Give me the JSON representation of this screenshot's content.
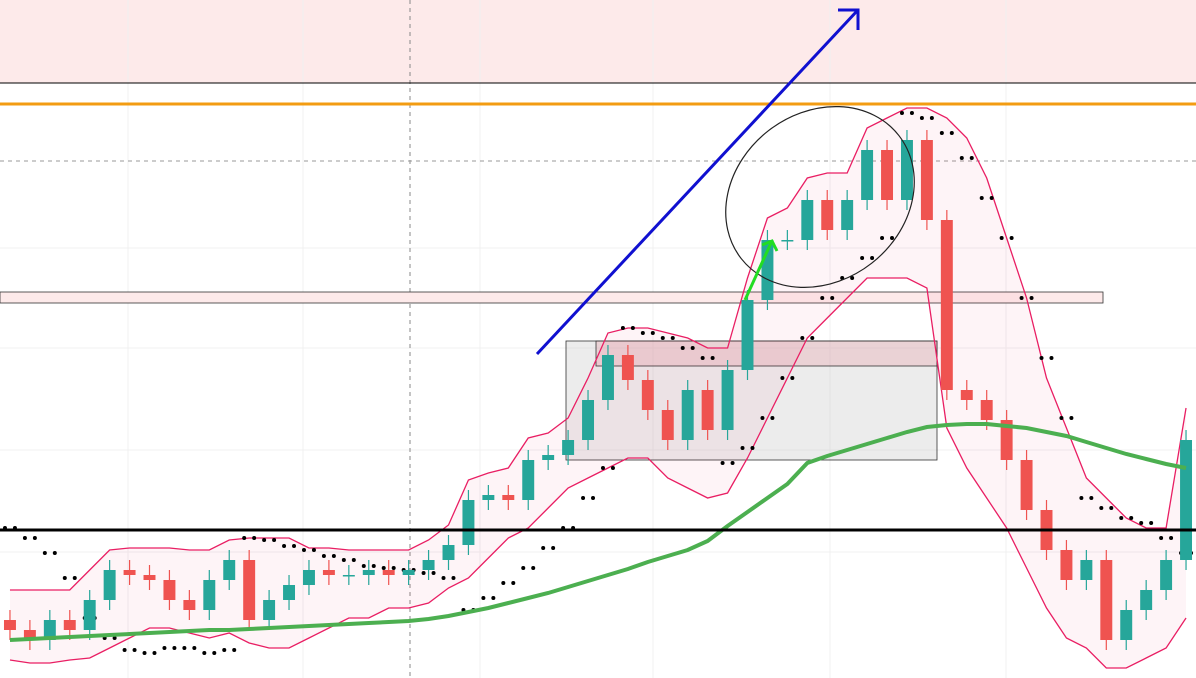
{
  "chart_data": {
    "type": "candlestick",
    "ylim": [
      0,
      678
    ],
    "up_color": "#26a69a",
    "down_color": "#ef5350",
    "open": [
      58,
      48,
      38,
      58,
      48,
      78,
      108,
      103,
      98,
      78,
      68,
      98,
      118,
      58,
      78,
      93,
      108,
      103,
      103,
      108,
      103,
      108,
      118,
      133,
      178,
      183,
      178,
      218,
      223,
      238,
      278,
      323,
      298,
      268,
      238,
      288,
      248,
      308,
      378,
      438,
      438,
      478,
      448,
      478,
      528,
      478,
      538,
      458,
      288,
      278,
      258,
      218,
      168,
      128,
      98,
      118,
      38,
      68,
      88,
      118
    ],
    "high": [
      68,
      58,
      68,
      68,
      88,
      118,
      118,
      113,
      108,
      88,
      108,
      128,
      128,
      88,
      103,
      118,
      118,
      113,
      118,
      118,
      118,
      128,
      143,
      188,
      193,
      193,
      228,
      233,
      248,
      288,
      333,
      333,
      308,
      278,
      298,
      298,
      318,
      388,
      448,
      448,
      488,
      488,
      488,
      538,
      538,
      548,
      548,
      468,
      298,
      288,
      268,
      228,
      178,
      138,
      128,
      128,
      78,
      98,
      128,
      248
    ],
    "low": [
      38,
      28,
      28,
      38,
      38,
      68,
      93,
      88,
      68,
      58,
      58,
      88,
      48,
      48,
      68,
      83,
      93,
      93,
      93,
      93,
      93,
      98,
      108,
      123,
      168,
      168,
      168,
      208,
      213,
      228,
      268,
      288,
      258,
      228,
      228,
      238,
      238,
      298,
      368,
      428,
      428,
      438,
      438,
      468,
      468,
      468,
      448,
      278,
      268,
      248,
      208,
      158,
      118,
      88,
      88,
      28,
      28,
      58,
      78,
      108
    ],
    "close": [
      48,
      38,
      58,
      48,
      78,
      108,
      103,
      98,
      78,
      68,
      98,
      118,
      58,
      78,
      93,
      108,
      103,
      103,
      108,
      103,
      108,
      118,
      133,
      178,
      183,
      178,
      218,
      223,
      238,
      278,
      323,
      298,
      268,
      238,
      288,
      248,
      308,
      378,
      438,
      438,
      478,
      448,
      478,
      528,
      478,
      538,
      458,
      288,
      278,
      258,
      218,
      168,
      128,
      98,
      118,
      38,
      68,
      88,
      118,
      238
    ],
    "overlays": [
      {
        "kind": "line",
        "color": "#4caf50",
        "values": [
          38,
          39,
          40,
          41,
          42,
          43,
          44,
          45,
          46,
          47,
          48,
          48,
          49,
          50,
          51,
          52,
          53,
          54,
          55,
          56,
          57,
          59,
          62,
          66,
          70,
          75,
          80,
          85,
          91,
          97,
          103,
          109,
          116,
          122,
          128,
          137,
          152,
          166,
          180,
          194,
          215,
          222,
          228,
          234,
          240,
          246,
          251,
          253,
          254,
          254,
          252,
          250,
          246,
          242,
          236,
          230,
          224,
          219,
          214,
          210
        ]
      },
      {
        "kind": "band",
        "color": "#e91e63",
        "values": [
          88,
          88,
          88,
          88,
          108,
          128,
          130,
          130,
          130,
          128,
          128,
          138,
          140,
          140,
          140,
          130,
          130,
          128,
          128,
          128,
          128,
          138,
          153,
          198,
          205,
          210,
          240,
          245,
          260,
          300,
          345,
          350,
          350,
          345,
          340,
          330,
          330,
          400,
          460,
          470,
          500,
          505,
          505,
          550,
          560,
          570,
          570,
          560,
          540,
          500,
          440,
          380,
          300,
          250,
          200,
          180,
          160,
          150,
          150,
          270
        ]
      },
      {
        "kind": "band",
        "color": "#e91e63",
        "values": [
          18,
          15,
          15,
          18,
          20,
          30,
          40,
          50,
          50,
          45,
          40,
          45,
          35,
          30,
          30,
          40,
          50,
          60,
          60,
          70,
          70,
          75,
          90,
          100,
          120,
          140,
          150,
          170,
          190,
          200,
          210,
          220,
          220,
          200,
          190,
          180,
          185,
          220,
          260,
          300,
          340,
          360,
          380,
          400,
          400,
          400,
          390,
          250,
          210,
          180,
          150,
          110,
          70,
          40,
          30,
          10,
          10,
          20,
          30,
          60
        ]
      },
      {
        "kind": "dots",
        "color": "#000000",
        "values": [
          150,
          140,
          125,
          100,
          60,
          40,
          28,
          25,
          30,
          30,
          25,
          28,
          140,
          138,
          132,
          128,
          122,
          118,
          112,
          110,
          108,
          105,
          100,
          68,
          80,
          95,
          110,
          130,
          150,
          180,
          210,
          350,
          345,
          340,
          330,
          320,
          215,
          230,
          260,
          300,
          340,
          380,
          400,
          420,
          440,
          565,
          560,
          545,
          520,
          480,
          440,
          380,
          320,
          260,
          180,
          170,
          160,
          155,
          140,
          125
        ]
      }
    ]
  }
}
